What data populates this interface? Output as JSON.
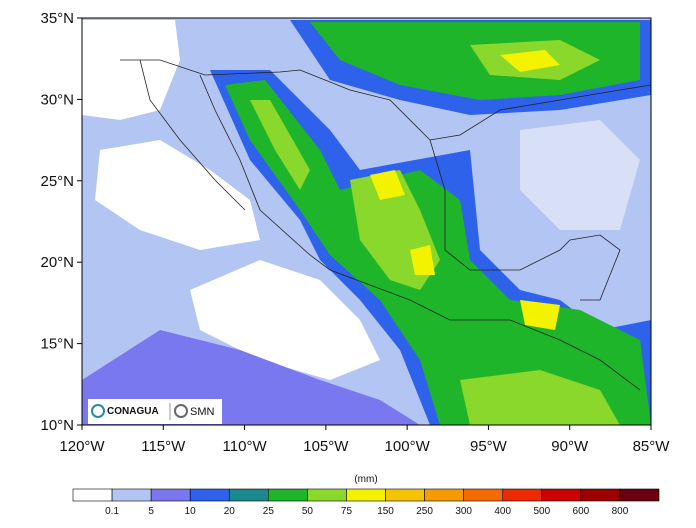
{
  "map": {
    "lonlim": [
      -120,
      -85
    ],
    "latlim": [
      10,
      35
    ],
    "lat_ticks": [
      {
        "value": 35,
        "label": "35°N"
      },
      {
        "value": 30,
        "label": "30°N"
      },
      {
        "value": 25,
        "label": "25°N"
      },
      {
        "value": 20,
        "label": "20°N"
      },
      {
        "value": 15,
        "label": "15°N"
      },
      {
        "value": 10,
        "label": "10°N"
      }
    ],
    "lon_ticks": [
      {
        "value": -120,
        "label": "120°W"
      },
      {
        "value": -115,
        "label": "115°W"
      },
      {
        "value": -110,
        "label": "110°W"
      },
      {
        "value": -105,
        "label": "105°W"
      },
      {
        "value": -100,
        "label": "100°W"
      },
      {
        "value": -95,
        "label": "95°W"
      },
      {
        "value": -90,
        "label": "90°W"
      },
      {
        "value": -85,
        "label": "85°W"
      }
    ],
    "logos": [
      "CONAGUA",
      "SMN"
    ]
  },
  "colorbar": {
    "unit": "(mm)",
    "levels": [
      0.1,
      5,
      10,
      20,
      25,
      50,
      75,
      150,
      250,
      300,
      400,
      500,
      600,
      800
    ],
    "colors": [
      "#ffffff",
      "#b3c5f2",
      "#7a78ee",
      "#2f62ea",
      "#17898f",
      "#1fb52a",
      "#8ad82b",
      "#f3f300",
      "#f5c400",
      "#f59a00",
      "#f46b00",
      "#ee2a00",
      "#cc0000",
      "#9e0000",
      "#6c0010"
    ]
  }
}
